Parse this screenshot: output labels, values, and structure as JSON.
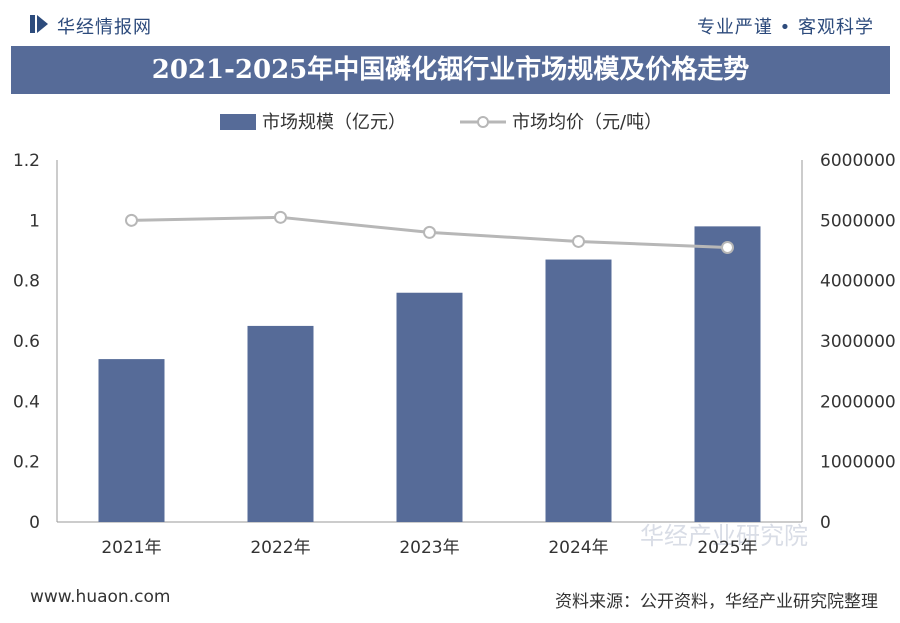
{
  "header": {
    "brand": "华经情报网",
    "tagline": "专业严谨 • 客观科学"
  },
  "footer": {
    "website": "www.huaon.com",
    "source": "资料来源：公开资料，华经产业研究院整理"
  },
  "watermark": "华经产业研究院",
  "colors": {
    "bar": "#566b98",
    "line": "#b7b7b7",
    "marker_fill": "#ffffff",
    "title_bg": "#566b98",
    "brand": "#2d4b7c"
  },
  "chart_data": {
    "type": "bar",
    "title": "2021-2025年中国磷化铟行业市场规模及价格走势",
    "categories": [
      "2021年",
      "2022年",
      "2023年",
      "2024年",
      "2025年"
    ],
    "series": [
      {
        "name": "市场规模（亿元）",
        "type": "bar",
        "axis": "left",
        "values": [
          0.54,
          0.65,
          0.76,
          0.87,
          0.98
        ]
      },
      {
        "name": "市场均价（元/吨）",
        "type": "line",
        "axis": "right",
        "values": [
          5000000,
          5050000,
          4800000,
          4650000,
          4550000
        ]
      }
    ],
    "y_left": {
      "min": 0,
      "max": 1.2,
      "ticks": [
        "0",
        "0.2",
        "0.4",
        "0.6",
        "0.8",
        "1",
        "1.2"
      ]
    },
    "y_right": {
      "min": 0,
      "max": 6000000,
      "ticks": [
        "0",
        "1000000",
        "2000000",
        "3000000",
        "4000000",
        "5000000",
        "6000000"
      ]
    },
    "legend_position": "top-center",
    "grid": false
  }
}
